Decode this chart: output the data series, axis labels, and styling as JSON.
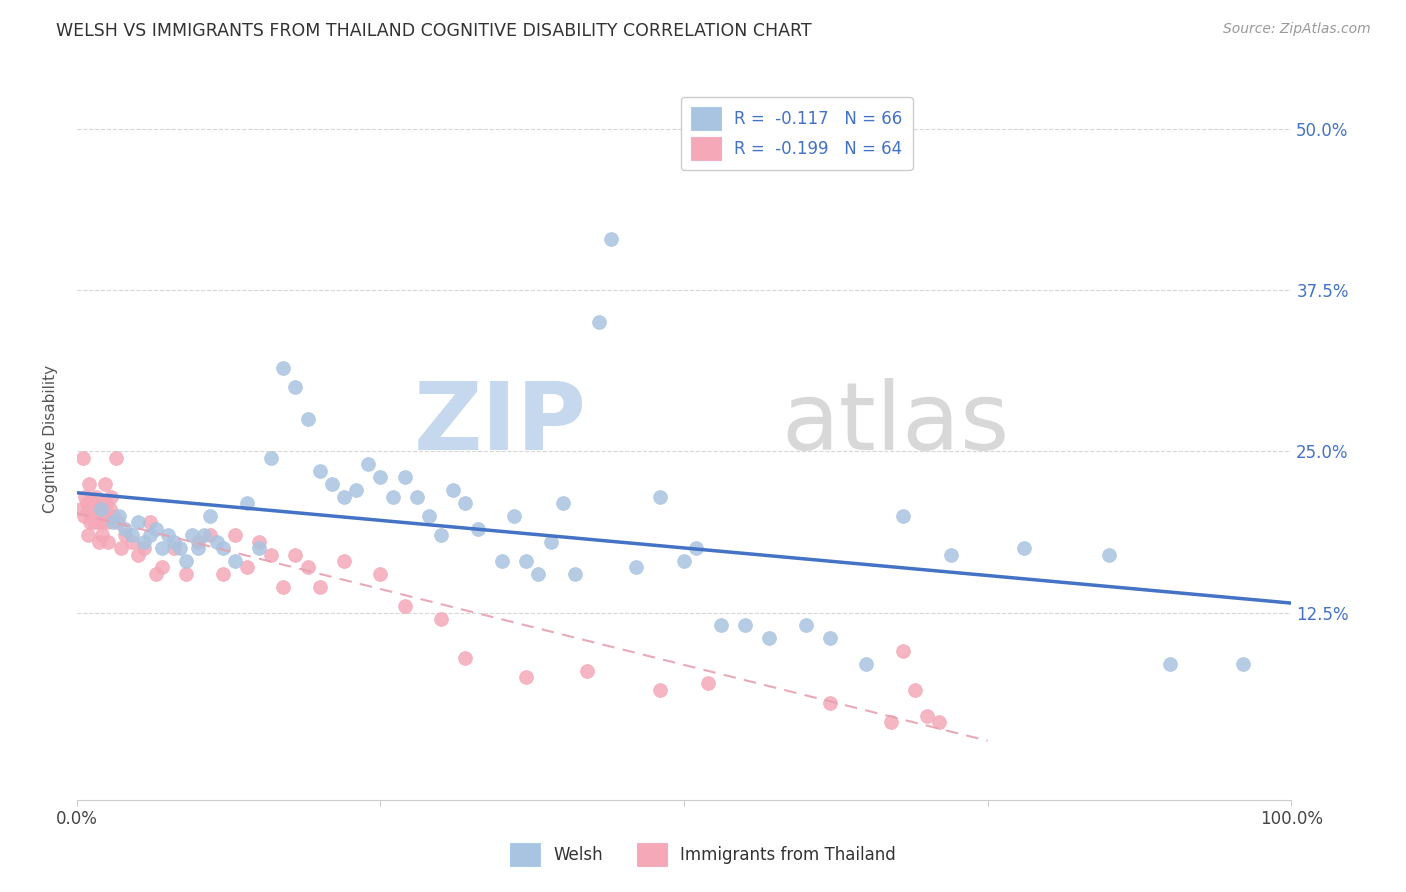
{
  "title": "WELSH VS IMMIGRANTS FROM THAILAND COGNITIVE DISABILITY CORRELATION CHART",
  "source": "Source: ZipAtlas.com",
  "ylabel": "Cognitive Disability",
  "ytick_labels": [
    "12.5%",
    "25.0%",
    "37.5%",
    "50.0%"
  ],
  "ytick_values": [
    0.125,
    0.25,
    0.375,
    0.5
  ],
  "xlim": [
    0.0,
    1.0
  ],
  "ylim": [
    -0.02,
    0.54
  ],
  "welsh_color": "#a8c4e0",
  "thailand_color": "#f4a8b8",
  "welsh_line_color": "#4472c4",
  "thailand_line_color": "#e8a0b0",
  "welsh_R": -0.117,
  "welsh_N": 66,
  "thailand_R": -0.199,
  "thailand_N": 64,
  "welsh_x": [
    0.02,
    0.03,
    0.035,
    0.04,
    0.045,
    0.05,
    0.055,
    0.06,
    0.065,
    0.07,
    0.075,
    0.08,
    0.085,
    0.09,
    0.095,
    0.1,
    0.105,
    0.11,
    0.115,
    0.12,
    0.13,
    0.14,
    0.15,
    0.16,
    0.17,
    0.18,
    0.19,
    0.2,
    0.21,
    0.22,
    0.23,
    0.24,
    0.25,
    0.26,
    0.27,
    0.28,
    0.29,
    0.3,
    0.31,
    0.32,
    0.33,
    0.35,
    0.36,
    0.37,
    0.38,
    0.39,
    0.4,
    0.41,
    0.43,
    0.44,
    0.46,
    0.48,
    0.5,
    0.51,
    0.53,
    0.55,
    0.57,
    0.6,
    0.62,
    0.65,
    0.68,
    0.72,
    0.78,
    0.85,
    0.9,
    0.96
  ],
  "welsh_y": [
    0.205,
    0.195,
    0.2,
    0.19,
    0.185,
    0.195,
    0.18,
    0.185,
    0.19,
    0.175,
    0.185,
    0.18,
    0.175,
    0.165,
    0.185,
    0.175,
    0.185,
    0.2,
    0.18,
    0.175,
    0.165,
    0.21,
    0.175,
    0.245,
    0.315,
    0.3,
    0.275,
    0.235,
    0.225,
    0.215,
    0.22,
    0.24,
    0.23,
    0.215,
    0.23,
    0.215,
    0.2,
    0.185,
    0.22,
    0.21,
    0.19,
    0.165,
    0.2,
    0.165,
    0.155,
    0.18,
    0.21,
    0.155,
    0.35,
    0.415,
    0.16,
    0.215,
    0.165,
    0.175,
    0.115,
    0.115,
    0.105,
    0.115,
    0.105,
    0.085,
    0.2,
    0.17,
    0.175,
    0.17,
    0.085,
    0.085
  ],
  "thai_x": [
    0.003,
    0.005,
    0.006,
    0.007,
    0.008,
    0.009,
    0.01,
    0.011,
    0.012,
    0.013,
    0.014,
    0.015,
    0.016,
    0.017,
    0.018,
    0.019,
    0.02,
    0.021,
    0.022,
    0.023,
    0.024,
    0.025,
    0.026,
    0.027,
    0.028,
    0.03,
    0.032,
    0.034,
    0.036,
    0.04,
    0.045,
    0.05,
    0.055,
    0.06,
    0.065,
    0.07,
    0.08,
    0.09,
    0.1,
    0.11,
    0.12,
    0.13,
    0.14,
    0.15,
    0.16,
    0.17,
    0.18,
    0.19,
    0.2,
    0.22,
    0.25,
    0.27,
    0.3,
    0.32,
    0.37,
    0.42,
    0.48,
    0.52,
    0.62,
    0.67,
    0.68,
    0.69,
    0.7,
    0.71
  ],
  "thai_y": [
    0.205,
    0.245,
    0.2,
    0.215,
    0.21,
    0.185,
    0.225,
    0.195,
    0.2,
    0.21,
    0.195,
    0.205,
    0.215,
    0.195,
    0.18,
    0.2,
    0.195,
    0.185,
    0.21,
    0.225,
    0.21,
    0.195,
    0.18,
    0.205,
    0.215,
    0.2,
    0.245,
    0.195,
    0.175,
    0.185,
    0.18,
    0.17,
    0.175,
    0.195,
    0.155,
    0.16,
    0.175,
    0.155,
    0.18,
    0.185,
    0.155,
    0.185,
    0.16,
    0.18,
    0.17,
    0.145,
    0.17,
    0.16,
    0.145,
    0.165,
    0.155,
    0.13,
    0.12,
    0.09,
    0.075,
    0.08,
    0.065,
    0.07,
    0.055,
    0.04,
    0.095,
    0.065,
    0.045,
    0.04
  ]
}
